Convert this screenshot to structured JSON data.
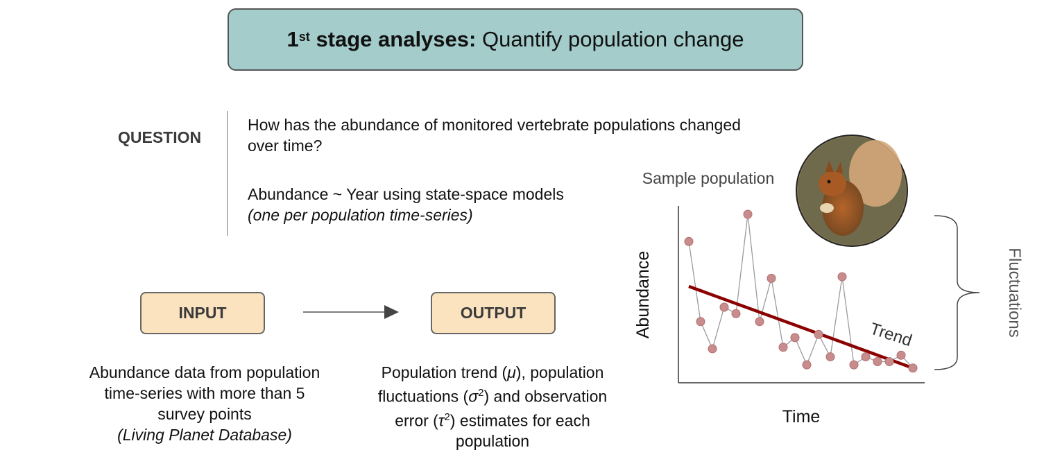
{
  "header": {
    "title_num": "1",
    "title_sup": "st",
    "title_bold": "stage analyses:",
    "title_rest": "Quantify population change"
  },
  "question": {
    "label": "QUESTION",
    "text": "How has the abundance of monitored vertebrate populations changed over time?",
    "model": "Abundance ~ Year using state-space models",
    "model_note": "(one per population time-series)"
  },
  "input": {
    "label": "INPUT",
    "line1": "Abundance data from population",
    "line2": "time-series with more than 5",
    "line3": "survey points",
    "source": "(Living Planet Database)"
  },
  "output": {
    "label": "OUTPUT",
    "line1_a": "Population trend (",
    "mu": "μ",
    "line1_b": "), population",
    "line2_a": "fluctuations (",
    "sigma": "σ",
    "sq1": "2",
    "line2_b": ") and observation",
    "line3_a": "error (",
    "tau": "τ",
    "sq2": "2",
    "line3_b": ") estimates for each",
    "line4": "population"
  },
  "chart_data": {
    "type": "line",
    "title": "Sample population",
    "xlabel": "Time",
    "ylabel": "Abundance",
    "series": [
      {
        "x": [
          1,
          2,
          3,
          4,
          5,
          6,
          7,
          8,
          9,
          10,
          11,
          12,
          13,
          14,
          15,
          16,
          17,
          18,
          19,
          20
        ],
        "y": [
          0.83,
          0.33,
          0.16,
          0.42,
          0.38,
          1.0,
          0.33,
          0.6,
          0.17,
          0.23,
          0.06,
          0.25,
          0.11,
          0.61,
          0.06,
          0.11,
          0.08,
          0.08,
          0.12,
          0.04
        ],
        "color": "#c98c8c",
        "line_color": "#9b9b9b"
      }
    ],
    "trend": {
      "label": "Trend",
      "y_start": 0.55,
      "y_end": 0.04,
      "color": "#8b0000"
    },
    "annotations": {
      "fluctuations": "Fluctuations"
    }
  }
}
